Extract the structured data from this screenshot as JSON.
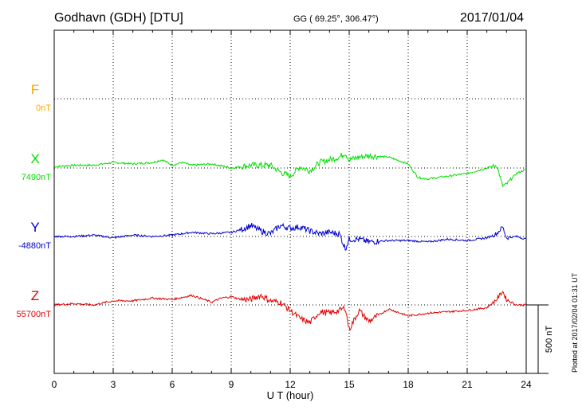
{
  "header": {
    "station": "Godhavn (GDH)  [DTU]",
    "coords": "GG ( 69.25°, 306.47°)",
    "date": "2017/01/04"
  },
  "plotted_note": "Plotted at 2017/02/04 01:31  UT",
  "scale_label": "500 nT",
  "chart_data": {
    "type": "line",
    "xlabel": "U T (hour)",
    "xlim": [
      0,
      24
    ],
    "x_ticks": [
      "0",
      "3",
      "6",
      "9",
      "12",
      "15",
      "18",
      "21",
      "24"
    ],
    "grid": true,
    "scale_bar_nT": 500,
    "colors": {
      "F": "#ffa500",
      "X": "#00e000",
      "Y": "#0000cc",
      "Z": "#e00000"
    },
    "series": [
      {
        "name": "F",
        "baseline": "0nT",
        "x": [],
        "values": []
      },
      {
        "name": "X",
        "baseline": "7490nT",
        "x": [
          0,
          1,
          2,
          3,
          4,
          5,
          5.5,
          6,
          6.5,
          7,
          8,
          9,
          10,
          11,
          11.5,
          12,
          12.5,
          13,
          13.5,
          14,
          14.5,
          14.8,
          15,
          15.5,
          16,
          17,
          18,
          18.5,
          19,
          20,
          21,
          22,
          22.5,
          22.8,
          23,
          23.5,
          24
        ],
        "values": [
          10,
          20,
          20,
          40,
          30,
          40,
          60,
          20,
          40,
          20,
          30,
          0,
          20,
          20,
          -30,
          -60,
          10,
          -20,
          40,
          60,
          80,
          110,
          60,
          80,
          90,
          80,
          30,
          -70,
          -80,
          -60,
          -40,
          0,
          20,
          -130,
          -120,
          -40,
          -10
        ]
      },
      {
        "name": "Y",
        "baseline": "-4880nT",
        "x": [
          0,
          1,
          2,
          3,
          4,
          5,
          6,
          7,
          8,
          9,
          9.5,
          10,
          10.5,
          11,
          11.5,
          12,
          12.5,
          13,
          13.5,
          14,
          14.5,
          14.8,
          15,
          15.5,
          16,
          17,
          18,
          19,
          20,
          21,
          22,
          22.5,
          22.8,
          23,
          23.5,
          24
        ],
        "values": [
          0,
          0,
          10,
          -10,
          10,
          0,
          10,
          30,
          20,
          30,
          50,
          80,
          40,
          20,
          80,
          60,
          70,
          40,
          20,
          30,
          20,
          -90,
          -20,
          -20,
          -40,
          -30,
          -30,
          -40,
          -20,
          -30,
          -10,
          20,
          70,
          -10,
          0,
          -20
        ]
      },
      {
        "name": "Z",
        "baseline": "55700nT",
        "x": [
          0,
          1,
          2,
          3,
          4,
          5,
          6,
          7,
          8,
          8.5,
          9,
          9.5,
          10,
          10.5,
          11,
          11.5,
          12,
          12.5,
          13,
          13.5,
          14,
          14.5,
          14.8,
          15,
          15.5,
          16,
          17,
          18,
          19,
          20,
          21,
          22,
          22.5,
          22.8,
          23,
          23.5,
          24
        ],
        "values": [
          0,
          10,
          0,
          30,
          30,
          50,
          40,
          70,
          20,
          50,
          60,
          40,
          40,
          70,
          30,
          20,
          -40,
          -100,
          -130,
          -50,
          -60,
          -40,
          -20,
          -180,
          -40,
          -120,
          -30,
          -80,
          -60,
          -50,
          -40,
          -20,
          40,
          100,
          40,
          0,
          0
        ]
      }
    ]
  }
}
